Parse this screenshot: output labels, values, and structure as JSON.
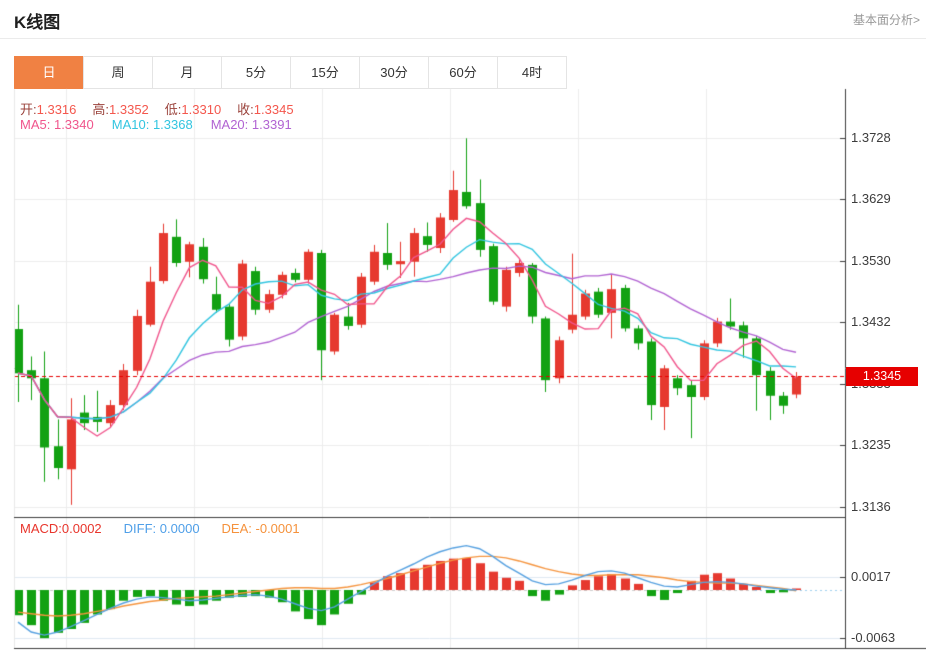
{
  "header": {
    "title": "K线图",
    "link": "基本面分析>"
  },
  "tabs": {
    "items": [
      "日",
      "周",
      "月",
      "5分",
      "15分",
      "30分",
      "60分",
      "4时"
    ],
    "active_index": 0
  },
  "ohlc": {
    "open_label": "开:",
    "open": "1.3316",
    "high_label": "高:",
    "high": "1.3352",
    "low_label": "低:",
    "low": "1.3310",
    "close_label": "收:",
    "close": "1.3345"
  },
  "ma": {
    "ma5_label": "MA5:",
    "ma5": "1.3340",
    "ma10_label": "MA10:",
    "ma10": "1.3368",
    "ma20_label": "MA20:",
    "ma20": "1.3391"
  },
  "macd_header": {
    "macd_label": "MACD:",
    "macd_value": "0.0002",
    "diff_label": "DIFF:",
    "diff_value": "0.0000",
    "dea_label": "DEA:",
    "dea_value": "-0.0001"
  },
  "price_axis": {
    "ticks": [
      "1.3728",
      "1.3629",
      "1.3530",
      "1.3432",
      "1.3333",
      "1.3235",
      "1.3136"
    ],
    "current": "1.3345"
  },
  "macd_axis": {
    "ticks": [
      "0.0017",
      "-0.0063"
    ]
  },
  "colors": {
    "accent_tab": "#f08143",
    "up": "#e6392f",
    "down": "#12a112",
    "ohlc_label": "#9a423b",
    "ohlc_value": "#f4574d",
    "ma5": "#f0558c",
    "ma10": "#32c5e0",
    "ma20": "#b163d2",
    "diff_line": "#55a0e0",
    "dea_line": "#f5943e",
    "badge_bg": "#e60000",
    "current_line": "#e60000",
    "grid": "#ececec",
    "macd_grid": "#dfe9f2",
    "zero_dash": "#cccccc",
    "zero_dot_tail": "#9fd0ee",
    "border_dark": "#3d3d3d",
    "axis_text": "#3c3c3c",
    "link_text": "#999999"
  },
  "chart_data": [
    {
      "type": "candlestick",
      "title": "K线图",
      "period": "日",
      "grid": true,
      "legend_position": "top-left-overlay",
      "y_ticks": [
        1.3728,
        1.3629,
        1.353,
        1.3432,
        1.3333,
        1.3235,
        1.3136
      ],
      "ylim": [
        1.311,
        1.3765
      ],
      "current_price": 1.3345,
      "last": {
        "open": 1.3316,
        "high": 1.3352,
        "low": 1.331,
        "close": 1.3345
      },
      "up_color": "#e6392f",
      "down_color": "#12a112",
      "candles": [
        [
          1.3421,
          1.346,
          1.3304,
          1.335
        ],
        [
          1.3355,
          1.3377,
          1.3307,
          1.3342
        ],
        [
          1.3342,
          1.3385,
          1.3176,
          1.3231
        ],
        [
          1.3233,
          1.3276,
          1.318,
          1.3198
        ],
        [
          1.3196,
          1.331,
          1.3139,
          1.3276
        ],
        [
          1.3287,
          1.3315,
          1.3259,
          1.327
        ],
        [
          1.328,
          1.3322,
          1.3256,
          1.3272
        ],
        [
          1.327,
          1.3307,
          1.3264,
          1.3299
        ],
        [
          1.3299,
          1.3365,
          1.3291,
          1.3355
        ],
        [
          1.3354,
          1.3452,
          1.3347,
          1.3442
        ],
        [
          1.3428,
          1.3521,
          1.3425,
          1.3497
        ],
        [
          1.3498,
          1.359,
          1.3494,
          1.3575
        ],
        [
          1.3569,
          1.3597,
          1.3521,
          1.3527
        ],
        [
          1.3529,
          1.3561,
          1.3504,
          1.3557
        ],
        [
          1.3553,
          1.3567,
          1.3494,
          1.3501
        ],
        [
          1.3477,
          1.3505,
          1.3447,
          1.3452
        ],
        [
          1.3457,
          1.3463,
          1.3393,
          1.3404
        ],
        [
          1.3409,
          1.3532,
          1.3403,
          1.3526
        ],
        [
          1.3514,
          1.3521,
          1.3444,
          1.3452
        ],
        [
          1.3452,
          1.3484,
          1.3447,
          1.3477
        ],
        [
          1.3476,
          1.3513,
          1.347,
          1.3508
        ],
        [
          1.3511,
          1.3518,
          1.3496,
          1.35
        ],
        [
          1.35,
          1.3549,
          1.3494,
          1.3545
        ],
        [
          1.3543,
          1.3548,
          1.3339,
          1.3387
        ],
        [
          1.3385,
          1.3447,
          1.338,
          1.3444
        ],
        [
          1.3441,
          1.3463,
          1.342,
          1.3426
        ],
        [
          1.3428,
          1.3511,
          1.3423,
          1.3505
        ],
        [
          1.3497,
          1.3556,
          1.3492,
          1.3545
        ],
        [
          1.3543,
          1.3591,
          1.3516,
          1.3524
        ],
        [
          1.3525,
          1.3561,
          1.3503,
          1.353
        ],
        [
          1.3529,
          1.3583,
          1.3505,
          1.3575
        ],
        [
          1.357,
          1.3592,
          1.3545,
          1.3556
        ],
        [
          1.3551,
          1.3607,
          1.3543,
          1.36
        ],
        [
          1.3596,
          1.3675,
          1.3593,
          1.3644
        ],
        [
          1.3641,
          1.3727,
          1.3614,
          1.3618
        ],
        [
          1.3623,
          1.3661,
          1.3537,
          1.3548
        ],
        [
          1.3554,
          1.3558,
          1.346,
          1.3465
        ],
        [
          1.3457,
          1.3521,
          1.3449,
          1.3516
        ],
        [
          1.3511,
          1.3532,
          1.3505,
          1.3527
        ],
        [
          1.3524,
          1.3527,
          1.343,
          1.3441
        ],
        [
          1.3438,
          1.3441,
          1.332,
          1.3339
        ],
        [
          1.3342,
          1.3409,
          1.3334,
          1.3403
        ],
        [
          1.342,
          1.3542,
          1.3414,
          1.3444
        ],
        [
          1.3441,
          1.3484,
          1.3436,
          1.3478
        ],
        [
          1.3481,
          1.3487,
          1.3439,
          1.3444
        ],
        [
          1.3447,
          1.3508,
          1.3406,
          1.3485
        ],
        [
          1.3487,
          1.3492,
          1.3417,
          1.3422
        ],
        [
          1.3422,
          1.3427,
          1.3388,
          1.3398
        ],
        [
          1.3401,
          1.3406,
          1.3275,
          1.3299
        ],
        [
          1.3296,
          1.3363,
          1.3259,
          1.3358
        ],
        [
          1.3342,
          1.3347,
          1.3315,
          1.3326
        ],
        [
          1.3331,
          1.3338,
          1.3246,
          1.3312
        ],
        [
          1.3312,
          1.3403,
          1.3307,
          1.3398
        ],
        [
          1.3398,
          1.3439,
          1.3392,
          1.3433
        ],
        [
          1.3433,
          1.347,
          1.342,
          1.3425
        ],
        [
          1.3427,
          1.3433,
          1.3375,
          1.3406
        ],
        [
          1.3406,
          1.341,
          1.329,
          1.3347
        ],
        [
          1.3354,
          1.336,
          1.3275,
          1.3314
        ],
        [
          1.3314,
          1.332,
          1.3285,
          1.3298
        ],
        [
          1.3316,
          1.3352,
          1.331,
          1.3345
        ]
      ],
      "overlays": [
        {
          "name": "MA5",
          "period": 5,
          "color": "#f0558c",
          "last_value": 1.334
        },
        {
          "name": "MA10",
          "period": 10,
          "color": "#32c5e0",
          "last_value": 1.3368
        },
        {
          "name": "MA20",
          "period": 20,
          "color": "#b163d2",
          "last_value": 1.3391
        }
      ]
    },
    {
      "type": "bar",
      "title": "MACD",
      "y_ticks": [
        0.0017,
        -0.0063
      ],
      "up_color": "#e6392f",
      "down_color": "#12a112",
      "last": {
        "macd": 0.0002,
        "diff": 0.0,
        "dea": -0.0001
      },
      "values": [
        -0.0033,
        -0.0046,
        -0.0063,
        -0.0056,
        -0.0051,
        -0.0043,
        -0.0032,
        -0.0025,
        -0.0014,
        -0.0009,
        -0.0008,
        -0.0014,
        -0.0019,
        -0.0021,
        -0.0019,
        -0.0014,
        -0.001,
        -0.0009,
        -0.0008,
        -0.001,
        -0.0016,
        -0.0028,
        -0.0038,
        -0.0046,
        -0.0032,
        -0.0018,
        -0.0006,
        0.001,
        0.0018,
        0.0022,
        0.0028,
        0.0033,
        0.0038,
        0.0041,
        0.0042,
        0.0035,
        0.0024,
        0.0016,
        0.0012,
        -0.0008,
        -0.0014,
        -0.0006,
        0.0006,
        0.0013,
        0.0018,
        0.0021,
        0.0015,
        0.0008,
        -0.0008,
        -0.0013,
        -0.0004,
        0.0012,
        0.002,
        0.0022,
        0.0015,
        0.0008,
        0.0004,
        -0.0004,
        -0.0003,
        0.0002
      ],
      "series": [
        {
          "name": "DIFF",
          "color": "#55a0e0",
          "values": [
            -0.0042,
            -0.0055,
            -0.0059,
            -0.0055,
            -0.0048,
            -0.004,
            -0.0032,
            -0.0024,
            -0.0017,
            -0.0012,
            -0.0009,
            -0.001,
            -0.0012,
            -0.0014,
            -0.0013,
            -0.0011,
            -0.0009,
            -0.0007,
            -0.0006,
            -0.0008,
            -0.0012,
            -0.0018,
            -0.0024,
            -0.0027,
            -0.0022,
            -0.0012,
            -0.0002,
            0.0008,
            0.0018,
            0.0026,
            0.0034,
            0.0043,
            0.005,
            0.0055,
            0.0058,
            0.0054,
            0.0044,
            0.0032,
            0.0022,
            0.0012,
            0.0007,
            0.0008,
            0.0013,
            0.0019,
            0.0024,
            0.0025,
            0.0022,
            0.0016,
            0.001,
            0.0005,
            0.0004,
            0.0007,
            0.001,
            0.0011,
            0.001,
            0.0008,
            0.0005,
            0.0003,
            0.0001,
            0.0
          ]
        },
        {
          "name": "DEA",
          "color": "#f5943e",
          "values": [
            -0.0029,
            -0.0031,
            -0.0033,
            -0.0034,
            -0.0033,
            -0.0031,
            -0.0028,
            -0.0025,
            -0.0021,
            -0.0018,
            -0.0015,
            -0.0013,
            -0.0011,
            -0.001,
            -0.0009,
            -0.0008,
            -0.0006,
            -0.0004,
            -0.0002,
            0.0,
            0.0002,
            0.0003,
            0.0003,
            0.0002,
            0.0002,
            0.0004,
            0.0007,
            0.0011,
            0.0015,
            0.002,
            0.0025,
            0.003,
            0.0035,
            0.0039,
            0.0042,
            0.0044,
            0.0044,
            0.0042,
            0.0038,
            0.0033,
            0.0028,
            0.0024,
            0.0021,
            0.0019,
            0.0019,
            0.002,
            0.002,
            0.002,
            0.0018,
            0.0016,
            0.0013,
            0.0011,
            0.001,
            0.0009,
            0.0009,
            0.0008,
            0.0006,
            0.0004,
            0.0002,
            -0.0001
          ]
        }
      ]
    }
  ]
}
